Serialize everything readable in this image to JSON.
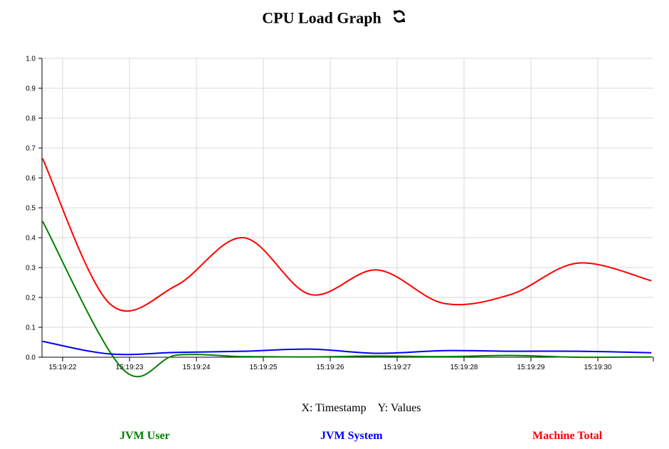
{
  "header": {
    "title": "CPU Load Graph",
    "refresh_icon": "refresh-icon"
  },
  "axis_note": {
    "x": "X: Timestamp",
    "y": "Y: Values"
  },
  "legend": [
    {
      "label": "JVM User",
      "color": "#008000"
    },
    {
      "label": "JVM System",
      "color": "#0000ff"
    },
    {
      "label": "Machine Total",
      "color": "#ff0000"
    }
  ],
  "chart_data": {
    "type": "line",
    "title": "CPU Load Graph",
    "xlabel": "Timestamp",
    "ylabel": "Values",
    "x_ticks": [
      "15:19:22",
      "15:19:23",
      "15:19:24",
      "15:19:25",
      "15:19:26",
      "15:19:27",
      "15:19:28",
      "15:19:29",
      "15:19:30"
    ],
    "y_ticks": [
      "0.0",
      "0.1",
      "0.2",
      "0.3",
      "0.4",
      "0.5",
      "0.6",
      "0.7",
      "0.8",
      "0.9",
      "1.0"
    ],
    "ylim": [
      0,
      1
    ],
    "grid": true,
    "series": [
      {
        "name": "JVM User",
        "color": "#008000",
        "points": [
          {
            "t": "15:19:21.7",
            "v": 0.455
          },
          {
            "t": "15:19:22.9",
            "v": -0.04
          },
          {
            "t": "15:19:23.7",
            "v": 0.007
          },
          {
            "t": "15:19:24.7",
            "v": 0.002
          },
          {
            "t": "15:19:25.7",
            "v": 0.001
          },
          {
            "t": "15:19:26.7",
            "v": 0.004
          },
          {
            "t": "15:19:27.7",
            "v": 0.002
          },
          {
            "t": "15:19:28.7",
            "v": 0.006
          },
          {
            "t": "15:19:29.7",
            "v": 0.0
          },
          {
            "t": "15:19:30.8",
            "v": 0.001
          }
        ]
      },
      {
        "name": "JVM System",
        "color": "#0000ff",
        "points": [
          {
            "t": "15:19:21.7",
            "v": 0.053
          },
          {
            "t": "15:19:22.7",
            "v": 0.011
          },
          {
            "t": "15:19:23.7",
            "v": 0.016
          },
          {
            "t": "15:19:24.7",
            "v": 0.02
          },
          {
            "t": "15:19:25.7",
            "v": 0.027
          },
          {
            "t": "15:19:26.7",
            "v": 0.013
          },
          {
            "t": "15:19:27.7",
            "v": 0.022
          },
          {
            "t": "15:19:28.7",
            "v": 0.02
          },
          {
            "t": "15:19:29.7",
            "v": 0.02
          },
          {
            "t": "15:19:30.8",
            "v": 0.015
          }
        ]
      },
      {
        "name": "Machine Total",
        "color": "#ff0000",
        "points": [
          {
            "t": "15:19:21.7",
            "v": 0.665
          },
          {
            "t": "15:19:22.7",
            "v": 0.18
          },
          {
            "t": "15:19:23.7",
            "v": 0.24
          },
          {
            "t": "15:19:24.7",
            "v": 0.4
          },
          {
            "t": "15:19:25.7",
            "v": 0.21
          },
          {
            "t": "15:19:26.7",
            "v": 0.292
          },
          {
            "t": "15:19:27.7",
            "v": 0.18
          },
          {
            "t": "15:19:28.7",
            "v": 0.21
          },
          {
            "t": "15:19:29.7",
            "v": 0.315
          },
          {
            "t": "15:19:30.8",
            "v": 0.256
          }
        ]
      }
    ]
  }
}
